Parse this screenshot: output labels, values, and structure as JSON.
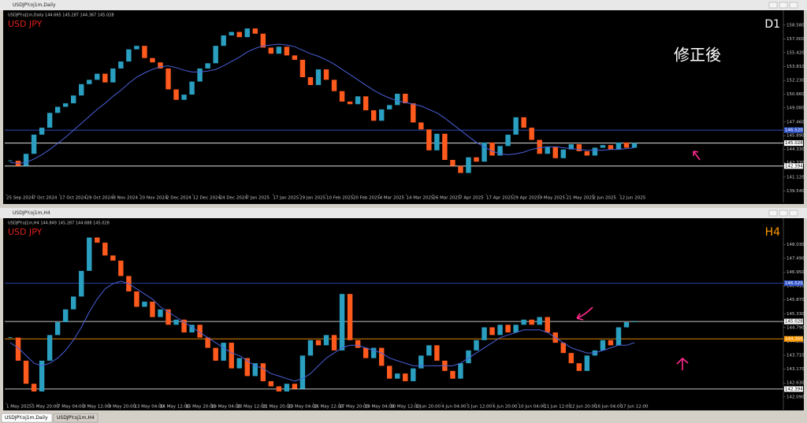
{
  "window_titles": [
    "USDJPY.oj1m,Daily",
    "USDJPY.oj1m,H4"
  ],
  "tabs": [
    "USDJPY.oj1m,Daily",
    "USDJPY.oj1m,H4"
  ],
  "chart_data": [
    {
      "type": "candlestick",
      "info": "USDJPY.oj1m,Daily  144.665 145.287 144.367 145.028",
      "symbol": "USD JPY",
      "timeframe": "D1",
      "timeframe_color": "#ffffff",
      "note": "修正後",
      "up_color": "#2a9fc0",
      "down_color": "#ff5a1e",
      "ma_color": "#4a5fd8",
      "ylim": [
        139.3,
        160.2
      ],
      "yticks": [
        {
          "value": 158.58,
          "label": "158.580"
        },
        {
          "value": 157.0,
          "label": "157.000"
        },
        {
          "value": 155.42,
          "label": "155.420"
        },
        {
          "value": 153.81,
          "label": "153.810"
        },
        {
          "value": 152.23,
          "label": "152.230"
        },
        {
          "value": 150.66,
          "label": "150.660"
        },
        {
          "value": 149.08,
          "label": "149.080"
        },
        {
          "value": 147.46,
          "label": "147.460"
        },
        {
          "value": 145.89,
          "label": "145.890"
        },
        {
          "value": 144.33,
          "label": "144.330"
        },
        {
          "value": 142.77,
          "label": "142.770"
        },
        {
          "value": 141.12,
          "label": "141.120"
        },
        {
          "value": 139.54,
          "label": "139.540"
        }
      ],
      "levels": [
        {
          "value": 146.52,
          "label": "146.520",
          "color": "#3355cc"
        },
        {
          "value": 145.028,
          "label": "145.028",
          "color": "#ffffff"
        },
        {
          "value": 142.394,
          "label": "142.394",
          "color": "#ffffff"
        }
      ],
      "x_labels": [
        "25 Sep 2024",
        "7 Oct 2024",
        "17 Oct 2024",
        "29 Oct 2024",
        "8 Nov 2024",
        "20 Nov 2024",
        "2 Dec 2024",
        "12 Dec 2024",
        "24 Dec 2024",
        "7 Jan 2025",
        "17 Jan 2025",
        "29 Jan 2025",
        "10 Feb 2025",
        "20 Feb 2025",
        "4 Mar 2025",
        "14 Mar 2025",
        "26 Mar 2025",
        "7 Apr 2025",
        "17 Apr 2025",
        "29 Apr 2025",
        "9 May 2025",
        "21 May 2025",
        "2 Jun 2025",
        "12 Jun 2025"
      ],
      "close": [
        143.0,
        142.4,
        143.8,
        146.0,
        146.8,
        148.5,
        149.2,
        149.6,
        150.5,
        151.8,
        152.3,
        153.0,
        152.0,
        153.6,
        154.4,
        155.8,
        156.2,
        154.8,
        154.3,
        153.6,
        151.2,
        150.0,
        150.6,
        152.1,
        153.6,
        154.2,
        156.2,
        157.4,
        157.8,
        157.2,
        158.2,
        157.6,
        156.0,
        155.3,
        156.1,
        155.1,
        154.6,
        152.6,
        151.7,
        153.5,
        152.3,
        151.0,
        149.8,
        149.5,
        150.4,
        148.8,
        147.6,
        148.9,
        149.4,
        150.7,
        149.6,
        147.4,
        146.6,
        144.2,
        146.1,
        143.1,
        142.4,
        141.6,
        143.4,
        142.9,
        145.1,
        143.6,
        144.7,
        146.0,
        148.0,
        146.8,
        145.4,
        143.8,
        144.6,
        143.3,
        144.3,
        144.9,
        144.1,
        143.6,
        144.5,
        144.8,
        144.3,
        145.1,
        144.5,
        145.03
      ],
      "ma": [
        142.8,
        142.7,
        142.8,
        143.2,
        143.7,
        144.3,
        145.0,
        145.7,
        146.5,
        147.3,
        148.1,
        148.9,
        149.6,
        150.4,
        151.1,
        151.9,
        152.6,
        153.1,
        153.5,
        153.8,
        153.9,
        153.7,
        153.4,
        153.2,
        153.2,
        153.3,
        153.5,
        153.9,
        154.4,
        154.9,
        155.5,
        155.9,
        156.2,
        156.3,
        156.4,
        156.3,
        156.1,
        155.7,
        155.3,
        155.0,
        154.6,
        154.1,
        153.5,
        152.9,
        152.3,
        151.7,
        151.1,
        150.6,
        150.2,
        149.9,
        149.7,
        149.5,
        149.3,
        148.9,
        148.5,
        147.9,
        147.2,
        146.5,
        145.8,
        145.1,
        144.6,
        144.1,
        143.8,
        143.7,
        143.8,
        144.0,
        144.3,
        144.5,
        144.6,
        144.6,
        144.5,
        144.4,
        144.3,
        144.2,
        144.2,
        144.2,
        144.3,
        144.3,
        144.4,
        144.5
      ]
    },
    {
      "type": "candlestick",
      "info": "USDJPY.oj1m,H4  144.849 145.287 144.688 145.028",
      "symbol": "USD JPY",
      "timeframe": "H4",
      "timeframe_color": "#ff9900",
      "up_color": "#2a9fc0",
      "down_color": "#ff5a1e",
      "ma_color": "#4a5fd8",
      "ylim": [
        141.9,
        148.9
      ],
      "yticks": [
        {
          "value": 148.03,
          "label": "148.030"
        },
        {
          "value": 147.49,
          "label": "147.490"
        },
        {
          "value": 146.95,
          "label": "146.950"
        },
        {
          "value": 146.41,
          "label": "146.410"
        },
        {
          "value": 145.87,
          "label": "145.870"
        },
        {
          "value": 145.33,
          "label": "145.330"
        },
        {
          "value": 144.79,
          "label": "144.790"
        },
        {
          "value": 144.25,
          "label": "144.250"
        },
        {
          "value": 143.71,
          "label": "143.710"
        },
        {
          "value": 143.17,
          "label": "143.170"
        },
        {
          "value": 142.63,
          "label": "142.630"
        },
        {
          "value": 142.09,
          "label": "142.090"
        }
      ],
      "levels": [
        {
          "value": 146.52,
          "label": "146.520",
          "color": "#3355cc"
        },
        {
          "value": 145.028,
          "label": "145.028",
          "color": "#ffffff"
        },
        {
          "value": 144.35,
          "label": "144.350",
          "color": "#ff9900"
        },
        {
          "value": 142.394,
          "label": "142.394",
          "color": "#ffffff"
        }
      ],
      "x_labels": [
        "1 May 2025",
        "5 May 20:00",
        "7 May 04:00",
        "8 May 12:00",
        "9 May 20:00",
        "13 May 04:00",
        "14 May 12:00",
        "15 May 20:00",
        "19 May 04:00",
        "20 May 12:00",
        "21 May 20:00",
        "23 May 04:00",
        "26 May 12:00",
        "27 May 20:00",
        "29 May 04:00",
        "30 May 12:00",
        "2 Jun 20:00",
        "4 Jun 04:00",
        "5 Jun 12:00",
        "6 Jun 20:00",
        "10 Jun 04:00",
        "11 Jun 12:00",
        "12 Jun 20:00",
        "16 Jun 04:00",
        "17 Jun 12:00"
      ],
      "close": [
        144.4,
        143.5,
        142.6,
        142.3,
        143.5,
        144.5,
        145.0,
        145.5,
        146.0,
        147.0,
        148.3,
        148.1,
        147.6,
        147.4,
        146.8,
        146.2,
        145.6,
        145.8,
        145.2,
        145.5,
        144.9,
        145.1,
        144.6,
        144.9,
        144.4,
        144.0,
        143.5,
        144.2,
        143.2,
        143.6,
        142.9,
        143.4,
        142.7,
        142.5,
        142.3,
        142.6,
        142.4,
        143.7,
        144.3,
        144.1,
        144.5,
        143.9,
        146.1,
        144.3,
        144.0,
        143.6,
        144.0,
        143.3,
        142.8,
        143.0,
        142.7,
        143.2,
        143.7,
        144.1,
        143.5,
        143.1,
        142.8,
        143.4,
        143.9,
        144.3,
        144.8,
        144.5,
        144.9,
        144.6,
        144.9,
        145.1,
        144.9,
        145.2,
        144.6,
        144.2,
        143.8,
        143.4,
        143.1,
        143.7,
        143.9,
        144.3,
        144.1,
        144.8,
        145.0,
        145.03
      ],
      "ma": [
        144.2,
        144.0,
        143.7,
        143.4,
        143.3,
        143.4,
        143.6,
        143.9,
        144.3,
        144.8,
        145.4,
        145.9,
        146.3,
        146.5,
        146.6,
        146.5,
        146.3,
        146.1,
        145.9,
        145.6,
        145.4,
        145.2,
        145.0,
        144.8,
        144.6,
        144.4,
        144.2,
        144.0,
        143.8,
        143.7,
        143.5,
        143.3,
        143.2,
        143.0,
        142.9,
        142.8,
        142.7,
        142.8,
        143.0,
        143.3,
        143.6,
        143.8,
        144.0,
        144.1,
        144.1,
        144.0,
        143.9,
        143.8,
        143.6,
        143.5,
        143.4,
        143.3,
        143.3,
        143.3,
        143.3,
        143.3,
        143.3,
        143.4,
        143.6,
        143.8,
        144.0,
        144.2,
        144.4,
        144.5,
        144.6,
        144.7,
        144.7,
        144.7,
        144.6,
        144.4,
        144.2,
        144.0,
        143.9,
        143.8,
        143.8,
        143.9,
        144.0,
        144.1,
        144.1,
        144.2
      ]
    }
  ]
}
